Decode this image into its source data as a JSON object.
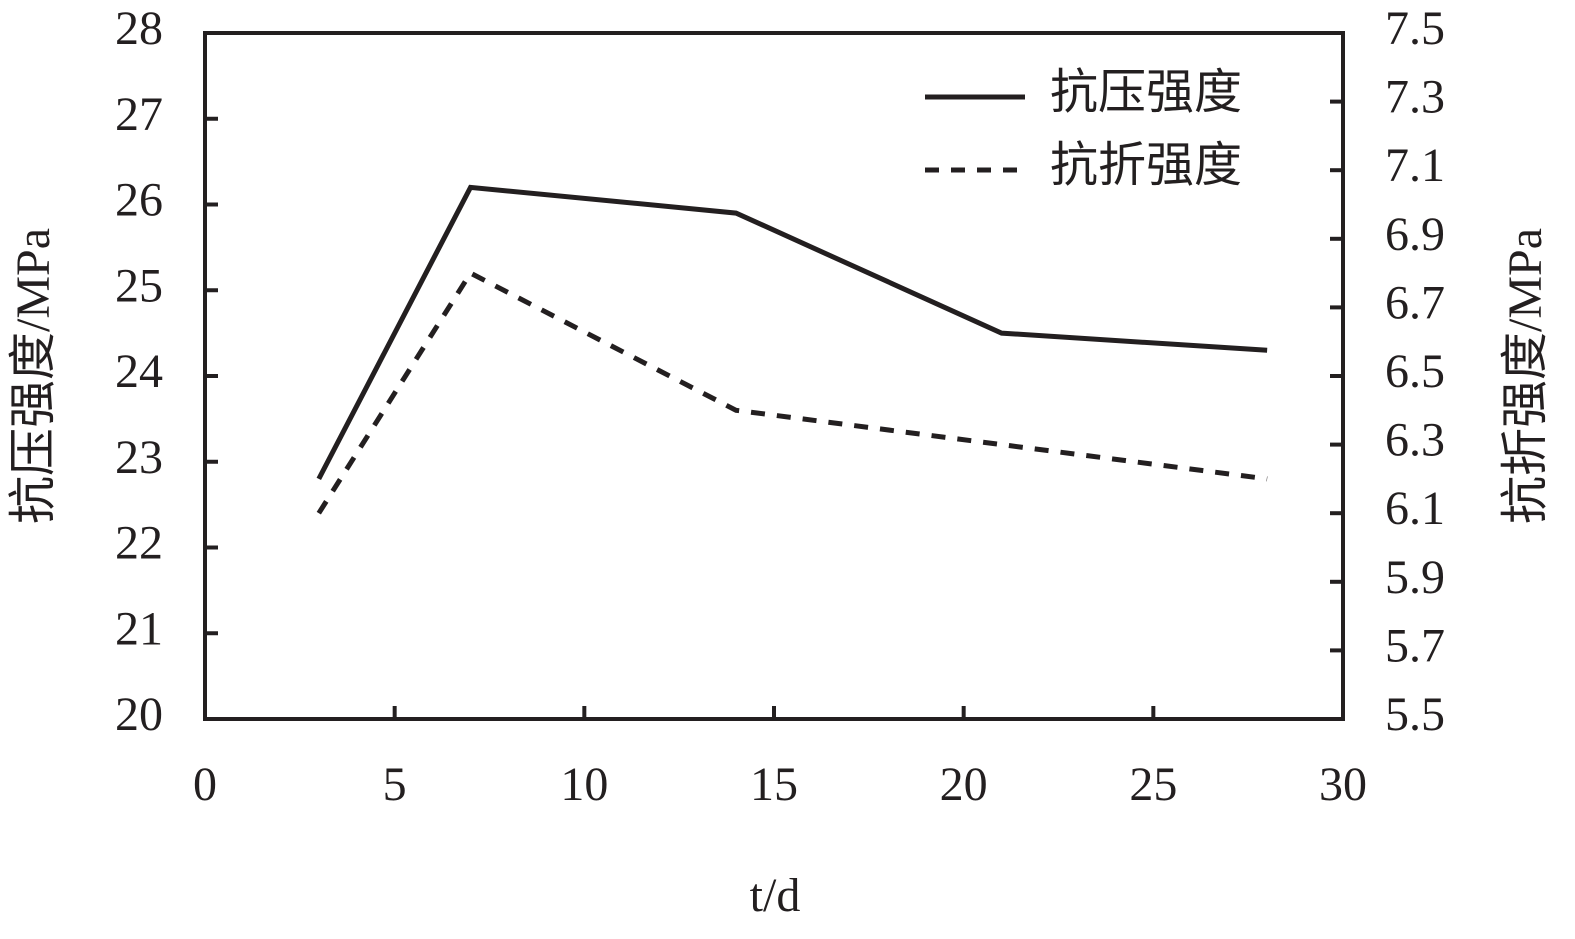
{
  "chart_data": {
    "type": "line",
    "x_label": "t/d",
    "y_label": "抗压强度/MPa",
    "y2_label": "抗折强度/MPa",
    "x": [
      3,
      7,
      14,
      21,
      28
    ],
    "series": [
      {
        "name": "抗压强度",
        "color": "#231f20",
        "line_style": "solid",
        "axis": "y",
        "values": [
          22.8,
          26.2,
          25.9,
          24.5,
          24.3
        ]
      },
      {
        "name": "抗折强度",
        "color": "#231f20",
        "line_style": "dashed",
        "axis": "y2",
        "values": [
          6.1,
          6.8,
          6.4,
          6.3,
          6.2
        ]
      }
    ],
    "xlim": [
      0,
      30
    ],
    "xticks": [
      0,
      5,
      10,
      15,
      20,
      25,
      30
    ],
    "ylim": [
      20,
      28
    ],
    "yticks": [
      20,
      21,
      22,
      23,
      24,
      25,
      26,
      27,
      28
    ],
    "y2lim": [
      5.5,
      7.5
    ],
    "y2ticks": [
      5.5,
      5.7,
      5.9,
      6.1,
      6.3,
      6.5,
      6.7,
      6.9,
      7.1,
      7.3,
      7.5
    ],
    "legend": "upper right"
  }
}
